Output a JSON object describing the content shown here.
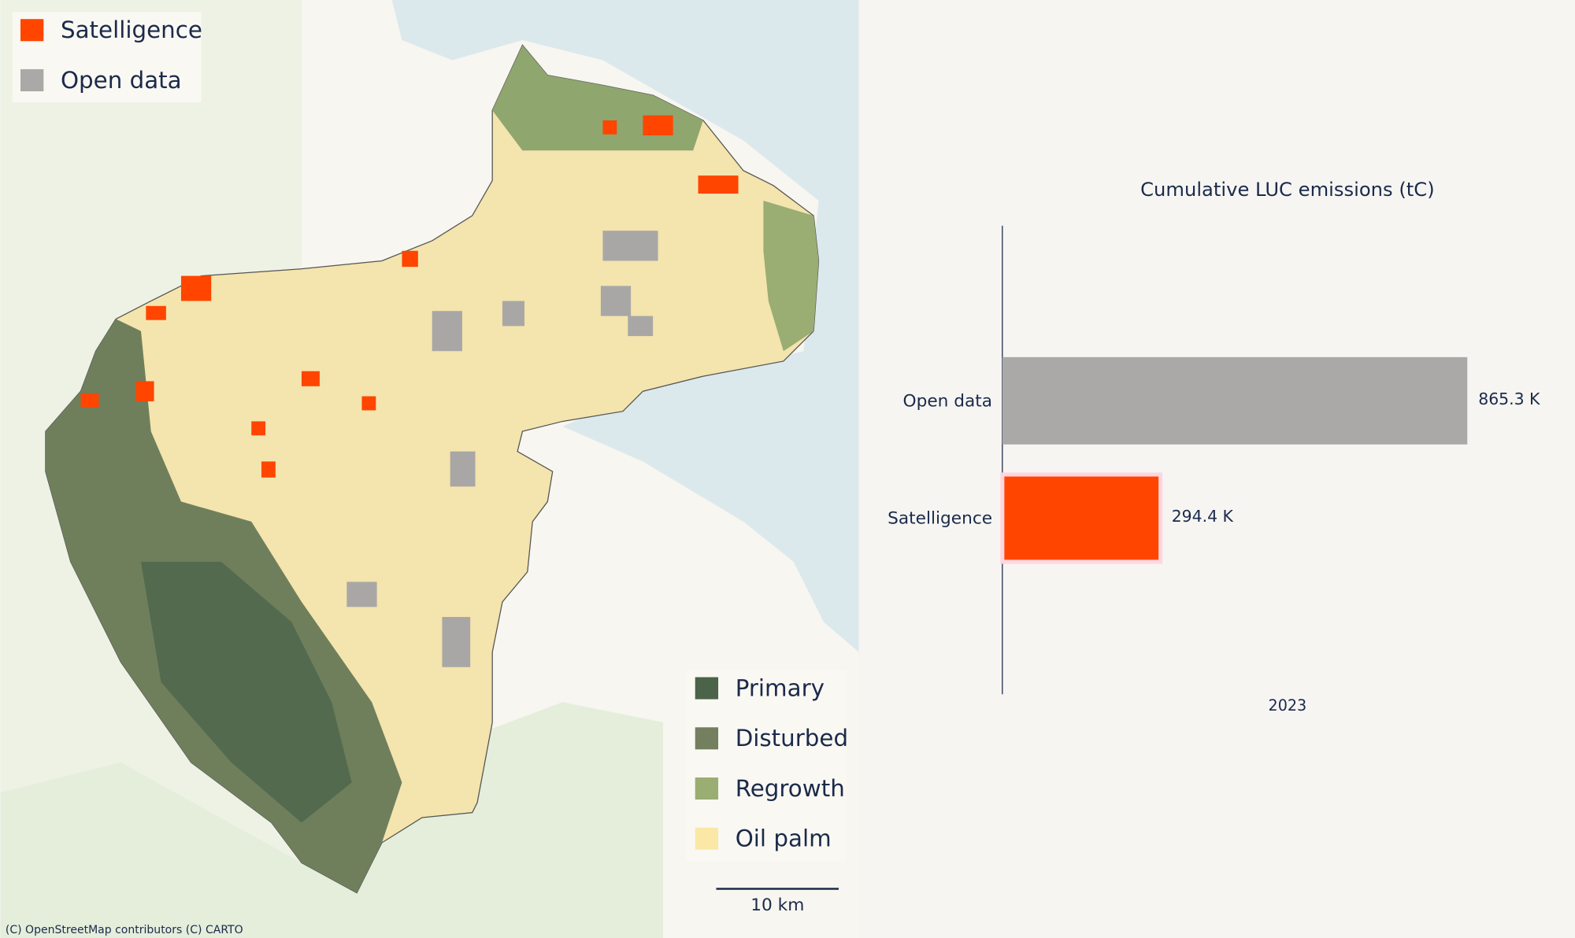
{
  "map": {
    "legend_sources": [
      {
        "label": "Satelligence",
        "color": "#ff4500"
      },
      {
        "label": "Open data",
        "color": "#aaa9a7"
      }
    ],
    "legend_landcover": [
      {
        "label": "Primary",
        "color": "#4b6349"
      },
      {
        "label": "Disturbed",
        "color": "#737f5e"
      },
      {
        "label": "Regrowth",
        "color": "#9aad73"
      },
      {
        "label": "Oil palm",
        "color": "#fbe7a6"
      }
    ],
    "scale_bar": "10 km",
    "attribution": "(C) OpenStreetMap contributors (C) CARTO"
  },
  "chart_data": {
    "type": "bar",
    "orientation": "horizontal",
    "title": "Cumulative LUC emissions (tC)",
    "categories": [
      "Open data",
      "Satelligence"
    ],
    "values": [
      865300,
      294400
    ],
    "value_labels": [
      "865.3 K",
      "294.4 K"
    ],
    "colors": [
      "#aaa9a7",
      "#ff4500"
    ],
    "xlabel": "2023",
    "xlim": [
      0,
      1065000
    ]
  }
}
